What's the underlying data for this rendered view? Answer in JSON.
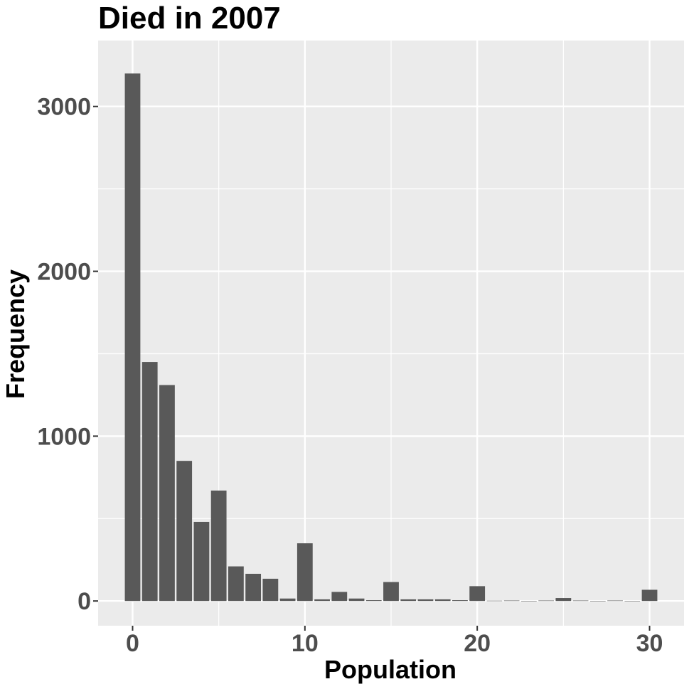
{
  "chart_data": {
    "type": "bar",
    "title": "Died in 2007",
    "xlabel": "Population",
    "ylabel": "Frequency",
    "x": [
      0,
      1,
      2,
      3,
      4,
      5,
      6,
      7,
      8,
      9,
      10,
      11,
      12,
      13,
      14,
      15,
      16,
      17,
      18,
      19,
      20,
      21,
      22,
      23,
      24,
      25,
      26,
      27,
      28,
      29,
      30
    ],
    "values": [
      3200,
      1450,
      1310,
      850,
      480,
      670,
      210,
      165,
      135,
      15,
      350,
      10,
      55,
      15,
      5,
      115,
      10,
      10,
      10,
      5,
      90,
      2,
      3,
      0,
      3,
      18,
      3,
      0,
      3,
      0,
      68
    ],
    "xlim": [
      -2,
      32
    ],
    "ylim": [
      -150,
      3400
    ],
    "xticks": [
      0,
      10,
      20,
      30
    ],
    "yticks": [
      0,
      1000,
      2000,
      3000
    ],
    "grid": true,
    "colors": {
      "bar": "#595959",
      "panel": "#ebebeb",
      "grid": "#ffffff",
      "tick_text": "#4d4d4d"
    }
  }
}
